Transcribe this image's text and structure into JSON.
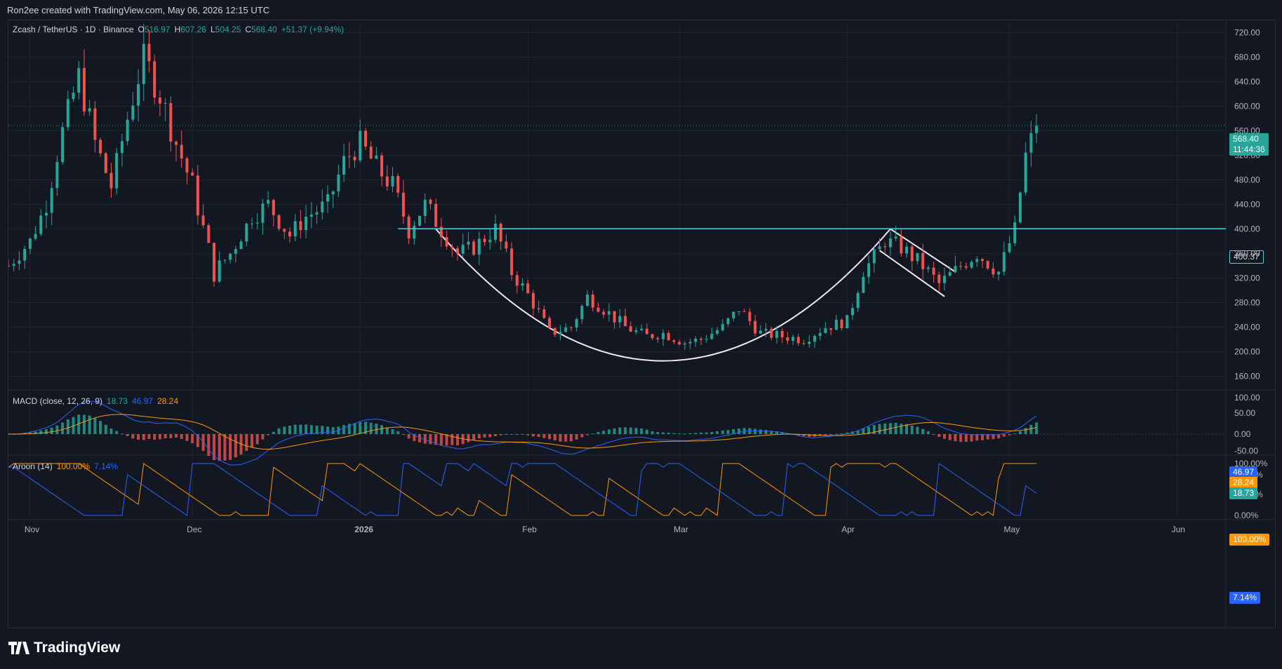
{
  "header": {
    "credit": "Ron2ee created with TradingView.com, May 06, 2026 12:15 UTC"
  },
  "symbol": {
    "name": "Zcash / TetherUS · 1D · Binance",
    "o_label": "O",
    "o": "516.97",
    "h_label": "H",
    "h": "607.26",
    "l_label": "L",
    "l": "504.25",
    "c_label": "C",
    "c": "568.40",
    "change": "+51.37 (+9.94%)"
  },
  "macd": {
    "label": "MACD (close, 12, 26, 9)",
    "v1": "18.73",
    "v2": "46.97",
    "v3": "28.24"
  },
  "aroon": {
    "label": "Aroon (14)",
    "up": "100.00%",
    "down": "7.14%"
  },
  "badges": {
    "last_price": "568.40",
    "countdown": "11:44:36",
    "level": "400.37",
    "macd_a": "46.97",
    "macd_b": "28.24",
    "macd_c": "18.73",
    "aroon_up": "100.00%",
    "aroon_down": "7.14%"
  },
  "footer": {
    "brand": "TradingView"
  },
  "colors": {
    "up": "#26a69a",
    "down": "#ef5350",
    "level": "#4dd0e1",
    "macd": "#2962ff",
    "signal": "#ff9800",
    "aroon_up": "#ff9800",
    "aroon_down": "#2962ff",
    "pattern": "#f3e5f5"
  },
  "chart_data": {
    "type": "line",
    "price_axis": {
      "min": 140,
      "max": 740,
      "ticks": [
        "720.00",
        "680.00",
        "640.00",
        "600.00",
        "560.00",
        "520.00",
        "480.00",
        "440.00",
        "400.00",
        "360.00",
        "320.00",
        "280.00",
        "240.00",
        "200.00",
        "160.00"
      ]
    },
    "time_axis": {
      "labels": [
        "Nov",
        "Dec",
        "2026",
        "Feb",
        "Mar",
        "Apr",
        "May",
        "Jun"
      ]
    },
    "close_series": [
      {
        "x": "2025-10-28",
        "y": 340
      },
      {
        "x": "2025-11-01",
        "y": 380
      },
      {
        "x": "2025-11-04",
        "y": 440
      },
      {
        "x": "2025-11-07",
        "y": 560
      },
      {
        "x": "2025-11-10",
        "y": 650
      },
      {
        "x": "2025-11-13",
        "y": 540
      },
      {
        "x": "2025-11-16",
        "y": 470
      },
      {
        "x": "2025-11-19",
        "y": 580
      },
      {
        "x": "2025-11-22",
        "y": 680
      },
      {
        "x": "2025-11-25",
        "y": 620
      },
      {
        "x": "2025-11-28",
        "y": 540
      },
      {
        "x": "2025-12-01",
        "y": 470
      },
      {
        "x": "2025-12-05",
        "y": 330
      },
      {
        "x": "2025-12-08",
        "y": 360
      },
      {
        "x": "2025-12-12",
        "y": 420
      },
      {
        "x": "2025-12-15",
        "y": 440
      },
      {
        "x": "2025-12-19",
        "y": 390
      },
      {
        "x": "2025-12-22",
        "y": 420
      },
      {
        "x": "2025-12-26",
        "y": 440
      },
      {
        "x": "2025-12-29",
        "y": 510
      },
      {
        "x": "2026-01-01",
        "y": 540
      },
      {
        "x": "2026-01-04",
        "y": 500
      },
      {
        "x": "2026-01-07",
        "y": 470
      },
      {
        "x": "2026-01-10",
        "y": 400
      },
      {
        "x": "2026-01-13",
        "y": 440
      },
      {
        "x": "2026-01-16",
        "y": 400
      },
      {
        "x": "2026-01-19",
        "y": 360
      },
      {
        "x": "2026-01-22",
        "y": 370
      },
      {
        "x": "2026-01-26",
        "y": 400
      },
      {
        "x": "2026-01-29",
        "y": 330
      },
      {
        "x": "2026-02-02",
        "y": 280
      },
      {
        "x": "2026-02-05",
        "y": 230
      },
      {
        "x": "2026-02-09",
        "y": 240
      },
      {
        "x": "2026-02-12",
        "y": 290
      },
      {
        "x": "2026-02-15",
        "y": 270
      },
      {
        "x": "2026-02-19",
        "y": 240
      },
      {
        "x": "2026-02-23",
        "y": 225
      },
      {
        "x": "2026-02-26",
        "y": 230
      },
      {
        "x": "2026-03-02",
        "y": 215
      },
      {
        "x": "2026-03-05",
        "y": 220
      },
      {
        "x": "2026-03-09",
        "y": 240
      },
      {
        "x": "2026-03-12",
        "y": 270
      },
      {
        "x": "2026-03-16",
        "y": 230
      },
      {
        "x": "2026-03-20",
        "y": 225
      },
      {
        "x": "2026-03-24",
        "y": 220
      },
      {
        "x": "2026-03-28",
        "y": 240
      },
      {
        "x": "2026-04-01",
        "y": 250
      },
      {
        "x": "2026-04-04",
        "y": 330
      },
      {
        "x": "2026-04-08",
        "y": 380
      },
      {
        "x": "2026-04-11",
        "y": 370
      },
      {
        "x": "2026-04-15",
        "y": 340
      },
      {
        "x": "2026-04-18",
        "y": 310
      },
      {
        "x": "2026-04-22",
        "y": 340
      },
      {
        "x": "2026-04-25",
        "y": 360
      },
      {
        "x": "2026-04-29",
        "y": 330
      },
      {
        "x": "2026-05-02",
        "y": 400
      },
      {
        "x": "2026-05-04",
        "y": 520
      },
      {
        "x": "2026-05-06",
        "y": 568.4
      }
    ],
    "horizontal_level": 400.37,
    "macd_axis": {
      "ticks": [
        "100.00",
        "50.00",
        "0.00",
        "-50.00"
      ]
    },
    "aroon_axis": {
      "ticks": [
        "100.00%",
        "80.00%",
        "40.00%",
        "0.00%"
      ]
    }
  }
}
